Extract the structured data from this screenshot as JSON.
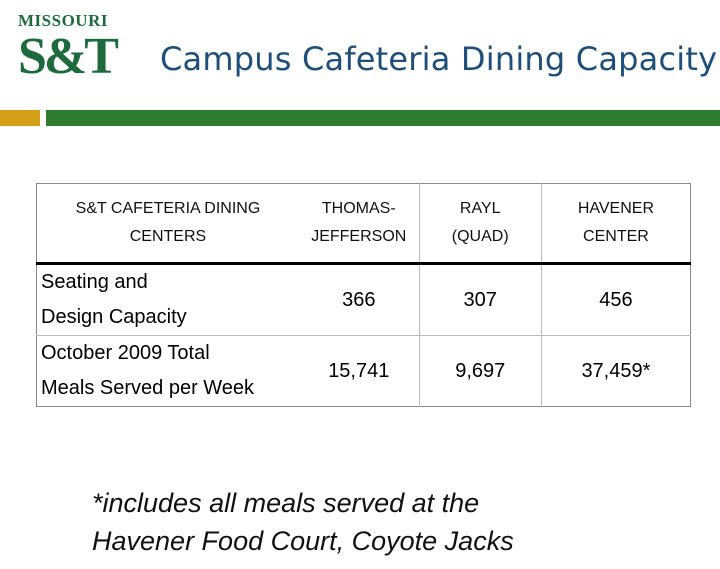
{
  "logo": {
    "top_text": "MISSOURI",
    "main_text": "S&T"
  },
  "title": "Campus Cafeteria Dining Capacity",
  "colors": {
    "title": "#1f4e79",
    "brand_green": "#1e6a3c",
    "bar_gold": "#d4a017",
    "bar_green": "#2e7d2e"
  },
  "table": {
    "header": {
      "col0": [
        "S&T CAFETERIA DINING",
        "CENTERS"
      ],
      "col1": [
        "THOMAS-",
        "JEFFERSON"
      ],
      "col2": [
        "RAYL",
        "(QUAD)"
      ],
      "col3": [
        "HAVENER",
        "CENTER"
      ]
    },
    "rows": [
      {
        "label": [
          "Seating and",
          "Design Capacity"
        ],
        "values": [
          "366",
          "307",
          "456"
        ]
      },
      {
        "label": [
          "October 2009 Total",
          "Meals Served per Week"
        ],
        "values": [
          "15,741",
          "9,697",
          "37,459*"
        ]
      }
    ]
  },
  "footnote": [
    "*includes all meals served at the",
    "Havener Food Court, Coyote Jacks"
  ]
}
